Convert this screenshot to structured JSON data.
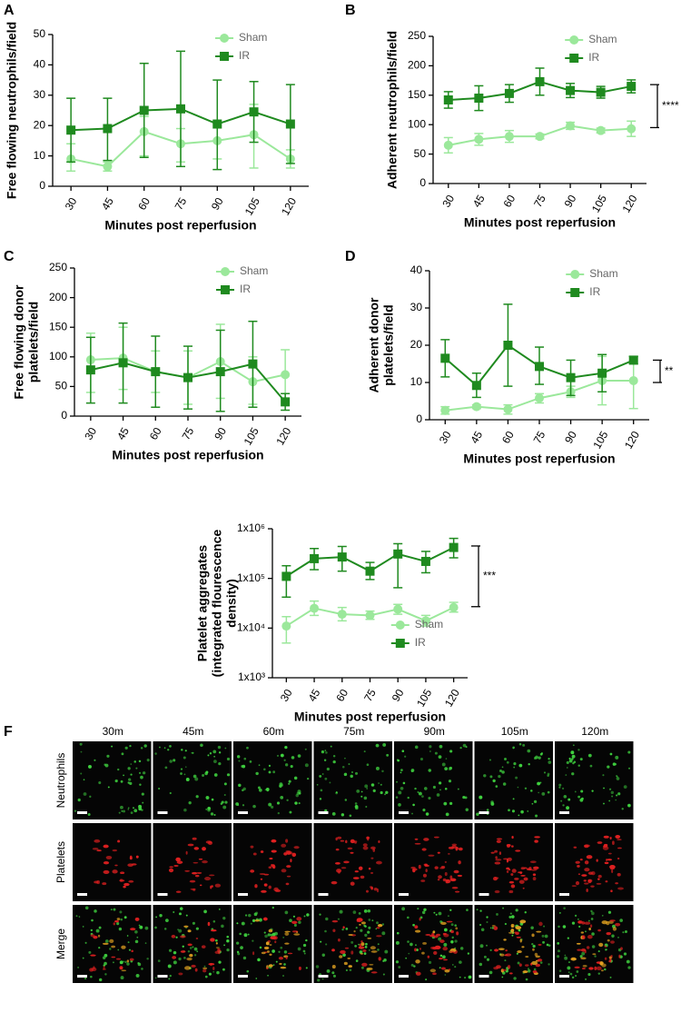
{
  "chart_data": [
    {
      "type": "line",
      "panel_label": "A",
      "x_label": "Minutes post reperfusion",
      "y_label": [
        "Free flowing neutrophils/field"
      ],
      "categories": [
        "30",
        "45",
        "60",
        "75",
        "90",
        "105",
        "120"
      ],
      "ylim": [
        0,
        50
      ],
      "yticks": [
        0,
        10,
        20,
        30,
        40,
        50
      ],
      "legend_position": "upper right",
      "series": [
        {
          "name": "Sham",
          "color": "#9be89b",
          "marker": "circle",
          "values": [
            9,
            6.5,
            18,
            14,
            15,
            17,
            9
          ],
          "lower": [
            5,
            5,
            10,
            8,
            9,
            6,
            6
          ],
          "upper": [
            14,
            8,
            23,
            19,
            21,
            27,
            12
          ]
        },
        {
          "name": "IR",
          "color": "#1f8a1f",
          "marker": "square",
          "values": [
            18.5,
            19,
            25,
            25.5,
            20.5,
            24.5,
            20.5
          ],
          "lower": [
            8,
            8.5,
            9.5,
            6.5,
            5.5,
            14.5,
            7.5
          ],
          "upper": [
            29,
            29,
            40.5,
            44.5,
            35,
            34.5,
            33.5
          ]
        }
      ]
    },
    {
      "type": "line",
      "panel_label": "B",
      "x_label": "Minutes post reperfusion",
      "y_label": [
        "Adherent neutrophils/field"
      ],
      "categories": [
        "30",
        "45",
        "60",
        "75",
        "90",
        "105",
        "120"
      ],
      "ylim": [
        0,
        250
      ],
      "yticks": [
        0,
        50,
        100,
        150,
        200,
        250
      ],
      "legend_position": "upper right",
      "significance": {
        "label": "****",
        "from": 95,
        "to": 168
      },
      "series": [
        {
          "name": "Sham",
          "color": "#9be89b",
          "marker": "circle",
          "values": [
            65,
            75,
            80,
            80,
            98,
            90,
            93
          ],
          "lower": [
            52,
            65,
            70,
            76,
            92,
            86,
            80
          ],
          "upper": [
            78,
            85,
            90,
            84,
            104,
            94,
            106
          ]
        },
        {
          "name": "IR",
          "color": "#1f8a1f",
          "marker": "square",
          "values": [
            142,
            145,
            153,
            173,
            158,
            155,
            165
          ],
          "lower": [
            128,
            124,
            138,
            150,
            146,
            145,
            154
          ],
          "upper": [
            156,
            166,
            168,
            196,
            170,
            165,
            176
          ]
        }
      ]
    },
    {
      "type": "line",
      "panel_label": "C",
      "x_label": "Minutes post reperfusion",
      "y_label": [
        "Free flowing donor",
        "platelets/field"
      ],
      "categories": [
        "30",
        "45",
        "60",
        "75",
        "90",
        "105",
        "120"
      ],
      "ylim": [
        0,
        250
      ],
      "yticks": [
        0,
        50,
        100,
        150,
        200,
        250
      ],
      "legend_position": "upper right",
      "series": [
        {
          "name": "Sham",
          "color": "#9be89b",
          "marker": "circle",
          "values": [
            95,
            98,
            75,
            65,
            92,
            58,
            70
          ],
          "lower": [
            40,
            45,
            40,
            20,
            30,
            20,
            30
          ],
          "upper": [
            140,
            150,
            110,
            110,
            155,
            100,
            112
          ]
        },
        {
          "name": "IR",
          "color": "#1f8a1f",
          "marker": "square",
          "values": [
            78,
            90,
            75,
            65,
            75,
            88,
            24
          ],
          "lower": [
            22,
            22,
            15,
            12,
            8,
            15,
            10
          ],
          "upper": [
            133,
            157,
            135,
            118,
            145,
            160,
            38
          ]
        }
      ]
    },
    {
      "type": "line",
      "panel_label": "D",
      "x_label": "Minutes post reperfusion",
      "y_label": [
        "Adherent donor",
        "platelets/field"
      ],
      "categories": [
        "30",
        "45",
        "60",
        "75",
        "90",
        "105",
        "120"
      ],
      "ylim": [
        0,
        40
      ],
      "yticks": [
        0,
        10,
        20,
        30,
        40
      ],
      "legend_position": "upper right",
      "significance": {
        "label": "**",
        "from": 10,
        "to": 16
      },
      "series": [
        {
          "name": "Sham",
          "color": "#9be89b",
          "marker": "circle",
          "values": [
            2.5,
            3.5,
            2.8,
            5.8,
            7.5,
            10.5,
            10.5
          ],
          "lower": [
            1.5,
            3,
            1.5,
            4.5,
            6,
            4,
            3
          ],
          "upper": [
            3.5,
            4,
            4,
            7,
            9,
            17,
            17
          ]
        },
        {
          "name": "IR",
          "color": "#1f8a1f",
          "marker": "square",
          "values": [
            16.5,
            9.2,
            20,
            14.3,
            11.3,
            12.5,
            16
          ],
          "lower": [
            11.5,
            6,
            9,
            9.5,
            6.5,
            7.5,
            15
          ],
          "upper": [
            21.5,
            12.5,
            31,
            19.5,
            16,
            17.5,
            17
          ]
        }
      ]
    },
    {
      "type": "line",
      "x_label": "Minutes post reperfusion",
      "y_label": [
        "Platelet aggregates",
        "(integrated flourescence",
        "density)"
      ],
      "categories": [
        "30",
        "45",
        "60",
        "75",
        "90",
        "105",
        "120"
      ],
      "yscale": "log",
      "ylim": [
        1000,
        1000000
      ],
      "yticks": [
        {
          "value": 1000,
          "label": "1x10³"
        },
        {
          "value": 10000,
          "label": "1x10⁴"
        },
        {
          "value": 100000,
          "label": "1x10⁵"
        },
        {
          "value": 1000000,
          "label": "1x10⁶"
        }
      ],
      "legend_position": "lower right",
      "significance": {
        "label": "***",
        "from": 27000,
        "to": 450000
      },
      "series": [
        {
          "name": "Sham",
          "color": "#9be89b",
          "marker": "circle",
          "values": [
            11000,
            25000,
            19000,
            18000,
            24000,
            14000,
            26000
          ],
          "lower": [
            5000,
            18000,
            14000,
            15000,
            19000,
            11000,
            21000
          ],
          "upper": [
            17000,
            35000,
            26000,
            22000,
            30000,
            18000,
            33000
          ]
        },
        {
          "name": "IR",
          "color": "#1f8a1f",
          "marker": "square",
          "values": [
            110000,
            250000,
            270000,
            140000,
            310000,
            220000,
            420000
          ],
          "lower": [
            42000,
            150000,
            140000,
            95000,
            65000,
            130000,
            260000
          ],
          "upper": [
            180000,
            400000,
            440000,
            210000,
            500000,
            350000,
            640000
          ]
        }
      ]
    }
  ],
  "image_panel": {
    "label": "F",
    "columns": [
      "30m",
      "45m",
      "60m",
      "75m",
      "90m",
      "105m",
      "120m"
    ],
    "rows": [
      "Neutrophils",
      "Platelets",
      "Merge"
    ]
  }
}
